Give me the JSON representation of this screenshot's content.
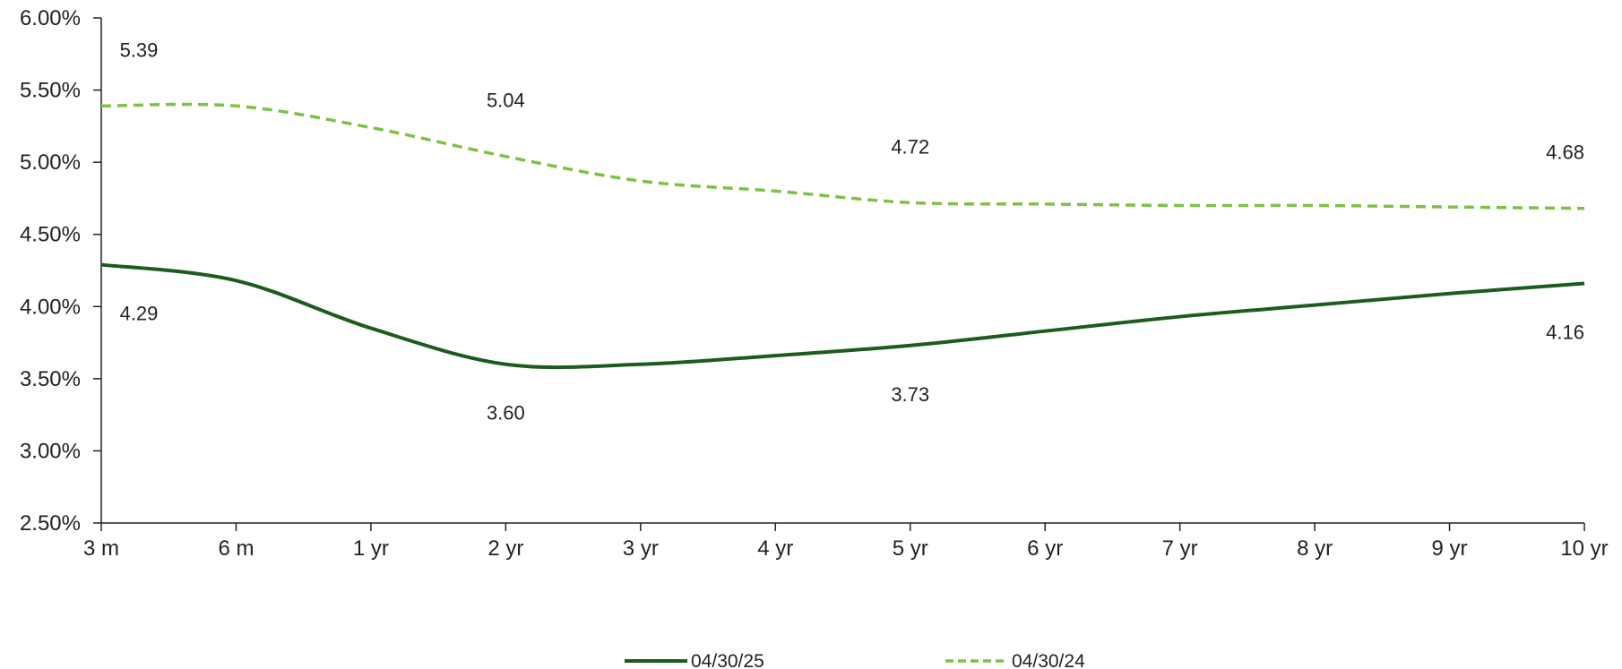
{
  "chart_data": {
    "type": "line",
    "title": "",
    "xlabel": "",
    "ylabel": "",
    "categories": [
      "3 m",
      "6 m",
      "1 yr",
      "2 yr",
      "3 yr",
      "4 yr",
      "5 yr",
      "6 yr",
      "7 yr",
      "8 yr",
      "9 yr",
      "10 yr"
    ],
    "y_ticks": [
      "2.50%",
      "3.00%",
      "3.50%",
      "4.00%",
      "4.50%",
      "5.00%",
      "5.50%",
      "6.00%"
    ],
    "ylim": [
      2.5,
      6.0
    ],
    "grid": false,
    "legend_position": "bottom",
    "series": [
      {
        "name": "04/30/25",
        "color": "#1e5c1e",
        "style": "solid",
        "values": [
          4.29,
          4.18,
          3.85,
          3.6,
          3.6,
          3.66,
          3.73,
          3.83,
          3.93,
          4.01,
          4.09,
          4.16
        ],
        "data_labels": [
          {
            "index": 0,
            "text": "4.29",
            "position": "below"
          },
          {
            "index": 3,
            "text": "3.60",
            "position": "below"
          },
          {
            "index": 6,
            "text": "3.73",
            "position": "below"
          },
          {
            "index": 11,
            "text": "4.16",
            "position": "below"
          }
        ]
      },
      {
        "name": "04/30/24",
        "color": "#7dc243",
        "style": "dashed",
        "values": [
          5.39,
          5.39,
          5.24,
          5.04,
          4.87,
          4.8,
          4.72,
          4.71,
          4.7,
          4.7,
          4.69,
          4.68
        ],
        "data_labels": [
          {
            "index": 0,
            "text": "5.39",
            "position": "above"
          },
          {
            "index": 3,
            "text": "5.04",
            "position": "above"
          },
          {
            "index": 6,
            "text": "4.72",
            "position": "above"
          },
          {
            "index": 11,
            "text": "4.68",
            "position": "above"
          }
        ]
      }
    ]
  }
}
